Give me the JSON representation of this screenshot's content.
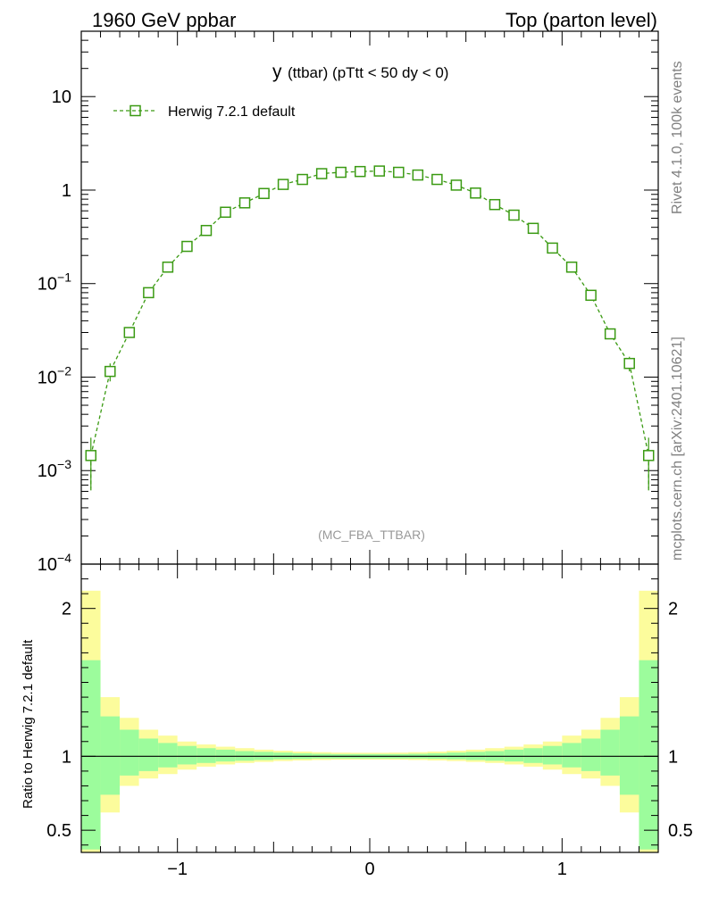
{
  "header": {
    "left": "1960 GeV ppbar",
    "right": "Top (parton level)"
  },
  "side": {
    "rivet": "Rivet 4.1.0,  100k events",
    "mcplots": "mcplots.cern.ch [arXiv:2401.10621]"
  },
  "main": {
    "title_main": "y",
    "title_sub": "(ttbar) (pTtt < 50 dy < 0)",
    "legend": "Herwig 7.2.1 default",
    "watermark": "(MC_FBA_TTBAR)",
    "y_ticks": [
      {
        "value": 10,
        "label": "10"
      },
      {
        "value": 1,
        "label": "1"
      },
      {
        "value": 0.1,
        "base": "10",
        "exp": "−1"
      },
      {
        "value": 0.01,
        "base": "10",
        "exp": "−2"
      },
      {
        "value": 0.001,
        "base": "10",
        "exp": "−3"
      },
      {
        "value": 0.0001,
        "base": "10",
        "exp": "−4"
      }
    ]
  },
  "ratio": {
    "ylabel": "Ratio to Herwig 7.2.1 default",
    "y_ticks": [
      {
        "value": 2,
        "label": "2"
      },
      {
        "value": 1,
        "label": "1"
      },
      {
        "value": 0.5,
        "label": "0.5"
      }
    ]
  },
  "x_ticks": [
    {
      "value": -1,
      "label": "−1"
    },
    {
      "value": 0,
      "label": "0"
    },
    {
      "value": 1,
      "label": "1"
    }
  ],
  "colors": {
    "series": "#3a9a12",
    "band_inner": "#9cfc9c",
    "band_outer": "#fcfc9c",
    "watermark": "#999999",
    "side_text": "#808080"
  },
  "chart_data": {
    "type": "line",
    "title": "y (ttbar) (pTtt < 50 dy < 0)",
    "xlabel": "",
    "ylabel": "",
    "xlim": [
      -1.5,
      1.5
    ],
    "ylim": [
      0.0001,
      50
    ],
    "yscale": "log",
    "series": [
      {
        "name": "Herwig 7.2.1 default",
        "x": [
          -1.45,
          -1.35,
          -1.25,
          -1.15,
          -1.05,
          -0.95,
          -0.85,
          -0.75,
          -0.65,
          -0.55,
          -0.45,
          -0.35,
          -0.25,
          -0.15,
          -0.05,
          0.05,
          0.15,
          0.25,
          0.35,
          0.45,
          0.55,
          0.65,
          0.75,
          0.85,
          0.95,
          1.05,
          1.15,
          1.25,
          1.35,
          1.45
        ],
        "values": [
          0.00145,
          0.0115,
          0.03,
          0.08,
          0.15,
          0.25,
          0.37,
          0.58,
          0.73,
          0.92,
          1.15,
          1.3,
          1.5,
          1.55,
          1.58,
          1.6,
          1.55,
          1.45,
          1.3,
          1.13,
          0.93,
          0.7,
          0.54,
          0.39,
          0.24,
          0.15,
          0.075,
          0.029,
          0.014,
          0.00145
        ],
        "err": [
          0.0008,
          0.0025,
          0.002,
          0.002,
          0.003,
          0.004,
          0.005,
          0.007,
          0.008,
          0.009,
          0.01,
          0.011,
          0.012,
          0.012,
          0.012,
          0.012,
          0.012,
          0.012,
          0.011,
          0.01,
          0.009,
          0.008,
          0.007,
          0.005,
          0.004,
          0.003,
          0.002,
          0.002,
          0.0025,
          0.0008
        ]
      }
    ],
    "ratio_panel": {
      "ylabel": "Ratio to Herwig 7.2.1 default",
      "ylim": [
        0.35,
        2.3
      ],
      "reference": 1,
      "bin_edges": [
        -1.5,
        -1.4,
        -1.3,
        -1.2,
        -1.1,
        -1.0,
        -0.9,
        -0.8,
        -0.7,
        -0.6,
        -0.5,
        -0.4,
        -0.3,
        -0.2,
        -0.1,
        0.0,
        0.1,
        0.2,
        0.3,
        0.4,
        0.5,
        0.6,
        0.7,
        0.8,
        0.9,
        1.0,
        1.1,
        1.2,
        1.3,
        1.4,
        1.5
      ],
      "inner_low": [
        0.37,
        0.74,
        0.87,
        0.9,
        0.925,
        0.945,
        0.955,
        0.965,
        0.97,
        0.975,
        0.98,
        0.982,
        0.985,
        0.985,
        0.985,
        0.985,
        0.985,
        0.985,
        0.983,
        0.98,
        0.975,
        0.97,
        0.965,
        0.955,
        0.945,
        0.925,
        0.9,
        0.87,
        0.74,
        0.37
      ],
      "inner_high": [
        1.65,
        1.27,
        1.18,
        1.12,
        1.09,
        1.07,
        1.055,
        1.045,
        1.035,
        1.03,
        1.025,
        1.02,
        1.017,
        1.015,
        1.015,
        1.015,
        1.015,
        1.017,
        1.02,
        1.025,
        1.03,
        1.035,
        1.045,
        1.055,
        1.07,
        1.09,
        1.12,
        1.18,
        1.27,
        1.65
      ],
      "outer_low": [
        0.33,
        0.62,
        0.8,
        0.85,
        0.88,
        0.91,
        0.93,
        0.945,
        0.955,
        0.962,
        0.968,
        0.972,
        0.975,
        0.977,
        0.978,
        0.978,
        0.977,
        0.975,
        0.972,
        0.968,
        0.962,
        0.955,
        0.945,
        0.93,
        0.91,
        0.88,
        0.85,
        0.8,
        0.62,
        0.33
      ],
      "outer_high": [
        2.12,
        1.4,
        1.26,
        1.18,
        1.14,
        1.1,
        1.08,
        1.065,
        1.055,
        1.045,
        1.038,
        1.032,
        1.028,
        1.025,
        1.024,
        1.024,
        1.025,
        1.028,
        1.032,
        1.038,
        1.045,
        1.055,
        1.065,
        1.08,
        1.1,
        1.14,
        1.18,
        1.26,
        1.4,
        2.12
      ]
    }
  }
}
